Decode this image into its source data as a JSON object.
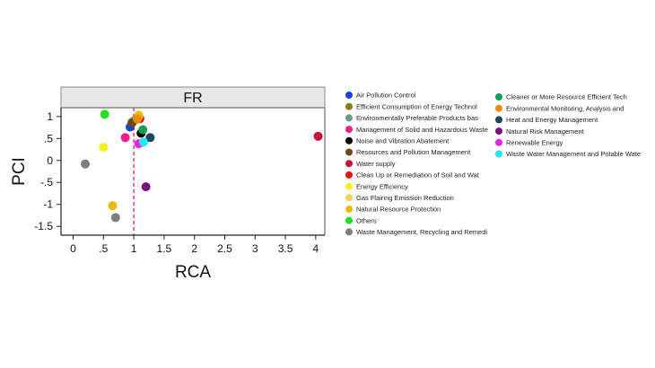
{
  "chart_data": {
    "type": "scatter",
    "facet_label": "FR",
    "xlabel": "RCA",
    "ylabel": "PCI",
    "xlim": [
      -0.2,
      4.15
    ],
    "ylim": [
      -1.7,
      1.2
    ],
    "x_ticks": [
      0,
      0.5,
      1,
      1.5,
      2,
      2.5,
      3,
      3.5,
      4
    ],
    "x_tick_labels": [
      "0",
      ".5",
      "1",
      "1.5",
      "2",
      "2.5",
      "3",
      "3.5",
      "4"
    ],
    "y_ticks": [
      1,
      0.5,
      0,
      -0.5,
      -1,
      -1.5
    ],
    "y_tick_labels": [
      "1",
      ".5",
      "0",
      "-.5",
      "-1",
      "-1.5"
    ],
    "reference_line": {
      "x": 1,
      "color": "#d6225a",
      "style": "dashed"
    },
    "grid": false,
    "legend_position": "right",
    "series": [
      {
        "name": "Air Pollution Control",
        "color": "#1f3fe0",
        "points": [
          [
            0.94,
            0.76
          ]
        ]
      },
      {
        "name": "Efficient Consumption of Energy Technol",
        "color": "#8a7a1a",
        "points": [
          [
            1.0,
            0.9
          ]
        ]
      },
      {
        "name": "Environmentally Preferable Products bas",
        "color": "#6a9a88",
        "points": [
          [
            0.97,
            0.87
          ]
        ]
      },
      {
        "name": "Management of Solid and Hazardous Waste",
        "color": "#f01e8c",
        "points": [
          [
            0.86,
            0.52
          ]
        ]
      },
      {
        "name": "Noise and Vibration Abatement",
        "color": "#000000",
        "points": [
          [
            1.12,
            0.62
          ]
        ]
      },
      {
        "name": "Resources and Pollution Management",
        "color": "#6b4a1e",
        "points": [
          [
            0.97,
            0.85
          ]
        ]
      },
      {
        "name": "Water supply",
        "color": "#c8103c",
        "points": [
          [
            4.04,
            0.55
          ]
        ]
      },
      {
        "name": "Clean Up or Remediation of Soil and Wat",
        "color": "#e81010",
        "points": [
          [
            1.1,
            0.95
          ]
        ]
      },
      {
        "name": "Energy Efficiency",
        "color": "#f6f020",
        "points": [
          [
            0.5,
            0.3
          ]
        ]
      },
      {
        "name": "Gas Flairing Emission Reduction",
        "color": "#f0d060",
        "points": [
          [
            1.08,
            1.0
          ]
        ]
      },
      {
        "name": "Natural Resource Protection",
        "color": "#f0b800",
        "points": [
          [
            0.65,
            -1.03
          ],
          [
            1.08,
            1.03
          ]
        ]
      },
      {
        "name": "Others",
        "color": "#22e022",
        "points": [
          [
            0.52,
            1.05
          ]
        ]
      },
      {
        "name": "Waste Management, Recycling and Remedi",
        "color": "#7e7e7e",
        "points": [
          [
            0.2,
            -0.08
          ],
          [
            0.7,
            -1.3
          ]
        ]
      },
      {
        "name": "Cleaner or More Resource Efficient Tech",
        "color": "#15a050",
        "points": [
          [
            1.15,
            0.7
          ]
        ]
      },
      {
        "name": "Environmental Monitoring, Analysis and",
        "color": "#f08a10",
        "points": [
          [
            1.06,
            0.94
          ]
        ]
      },
      {
        "name": "Heat and Energy Management",
        "color": "#1e4468",
        "points": [
          [
            1.27,
            0.52
          ]
        ]
      },
      {
        "name": "Natural Risk Management",
        "color": "#7a1080",
        "points": [
          [
            1.2,
            -0.6
          ]
        ]
      },
      {
        "name": "Renewable Energy",
        "color": "#ee20ee",
        "points": [
          [
            1.08,
            0.38
          ]
        ]
      },
      {
        "name": "Waste Water Management and Potable Wate",
        "color": "#20e8f0",
        "points": [
          [
            1.16,
            0.42
          ]
        ]
      }
    ]
  }
}
